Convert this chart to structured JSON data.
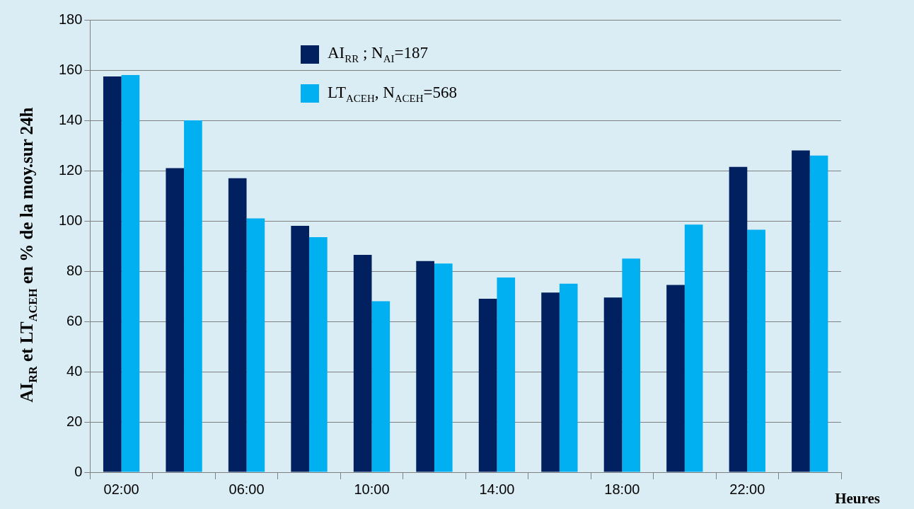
{
  "chart_data": {
    "type": "bar",
    "ylabel": "AI$_{RR}$ et LT$_{ACEH}$ en % de la moy.sur 24h",
    "xlabel": "Heures",
    "categories": [
      "02:00",
      null,
      "06:00",
      null,
      "10:00",
      null,
      "14:00",
      null,
      "18:00",
      null,
      "22:00",
      null
    ],
    "series": [
      {
        "name": "AI$_{RR}$ ; N$_{AI}$=187",
        "color": "#002060",
        "values": [
          157.5,
          121,
          117,
          98,
          86.5,
          84,
          69,
          71.5,
          69.5,
          74.5,
          121.5,
          128
        ]
      },
      {
        "name": "LT$_{ACEH}$, N$_{ACEH}$=568",
        "color": "#00b0f0",
        "values": [
          158,
          140,
          101,
          93.5,
          68,
          83,
          77.5,
          75,
          85,
          98.5,
          96.5,
          126
        ]
      }
    ],
    "ylim": [
      0,
      180
    ],
    "yticks": [
      0,
      20,
      40,
      60,
      80,
      100,
      120,
      140,
      160,
      180
    ],
    "grid": "y",
    "legend": "top"
  }
}
